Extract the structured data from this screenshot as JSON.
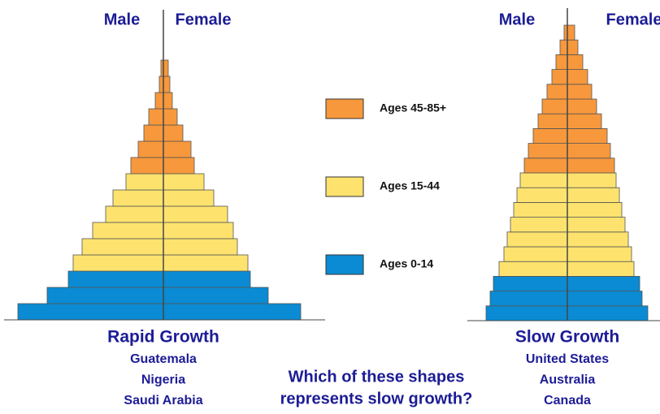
{
  "legend": [
    {
      "name": "Ages 45-85+",
      "color": "#f7983c"
    },
    {
      "name": "Ages 15-44",
      "color": "#fde36e"
    },
    {
      "name": "Ages 0-14",
      "color": "#0a8bd3"
    }
  ],
  "question": [
    "Which of these shapes",
    "represents slow growth?"
  ],
  "chart_data": [
    {
      "type": "pyramid",
      "title": "Rapid Growth",
      "examples": [
        "Guatemala",
        "Nigeria",
        "Saudi Arabia"
      ],
      "row_groups": [
        2,
        2,
        2,
        1,
        1,
        1,
        1,
        1,
        1,
        0,
        0,
        0,
        0,
        0,
        0,
        0
      ],
      "series": [
        {
          "name": "Male",
          "values": [
            179,
            143,
            117,
            111,
            100,
            87,
            71,
            62,
            46,
            40,
            31,
            24,
            18,
            10,
            5,
            3
          ]
        },
        {
          "name": "Female",
          "values": [
            169,
            129,
            107,
            104,
            91,
            86,
            79,
            62,
            50,
            38,
            34,
            24,
            17,
            11,
            8,
            6
          ]
        }
      ]
    },
    {
      "type": "pyramid",
      "title": "Slow Growth",
      "examples": [
        "United States",
        "Australia",
        "Canada"
      ],
      "row_groups": [
        2,
        2,
        2,
        1,
        1,
        1,
        1,
        1,
        1,
        1,
        0,
        0,
        0,
        0,
        0,
        0,
        0,
        0,
        0,
        0
      ],
      "series": [
        {
          "name": "Male",
          "values": [
            100,
            95,
            91,
            84,
            78,
            74,
            70,
            66,
            62,
            58,
            53,
            48,
            42,
            36,
            31,
            25,
            19,
            14,
            9,
            4
          ]
        },
        {
          "name": "Female",
          "values": [
            99,
            92,
            89,
            82,
            79,
            75,
            71,
            67,
            64,
            60,
            58,
            53,
            49,
            42,
            36,
            30,
            25,
            19,
            13,
            9
          ]
        }
      ]
    }
  ]
}
